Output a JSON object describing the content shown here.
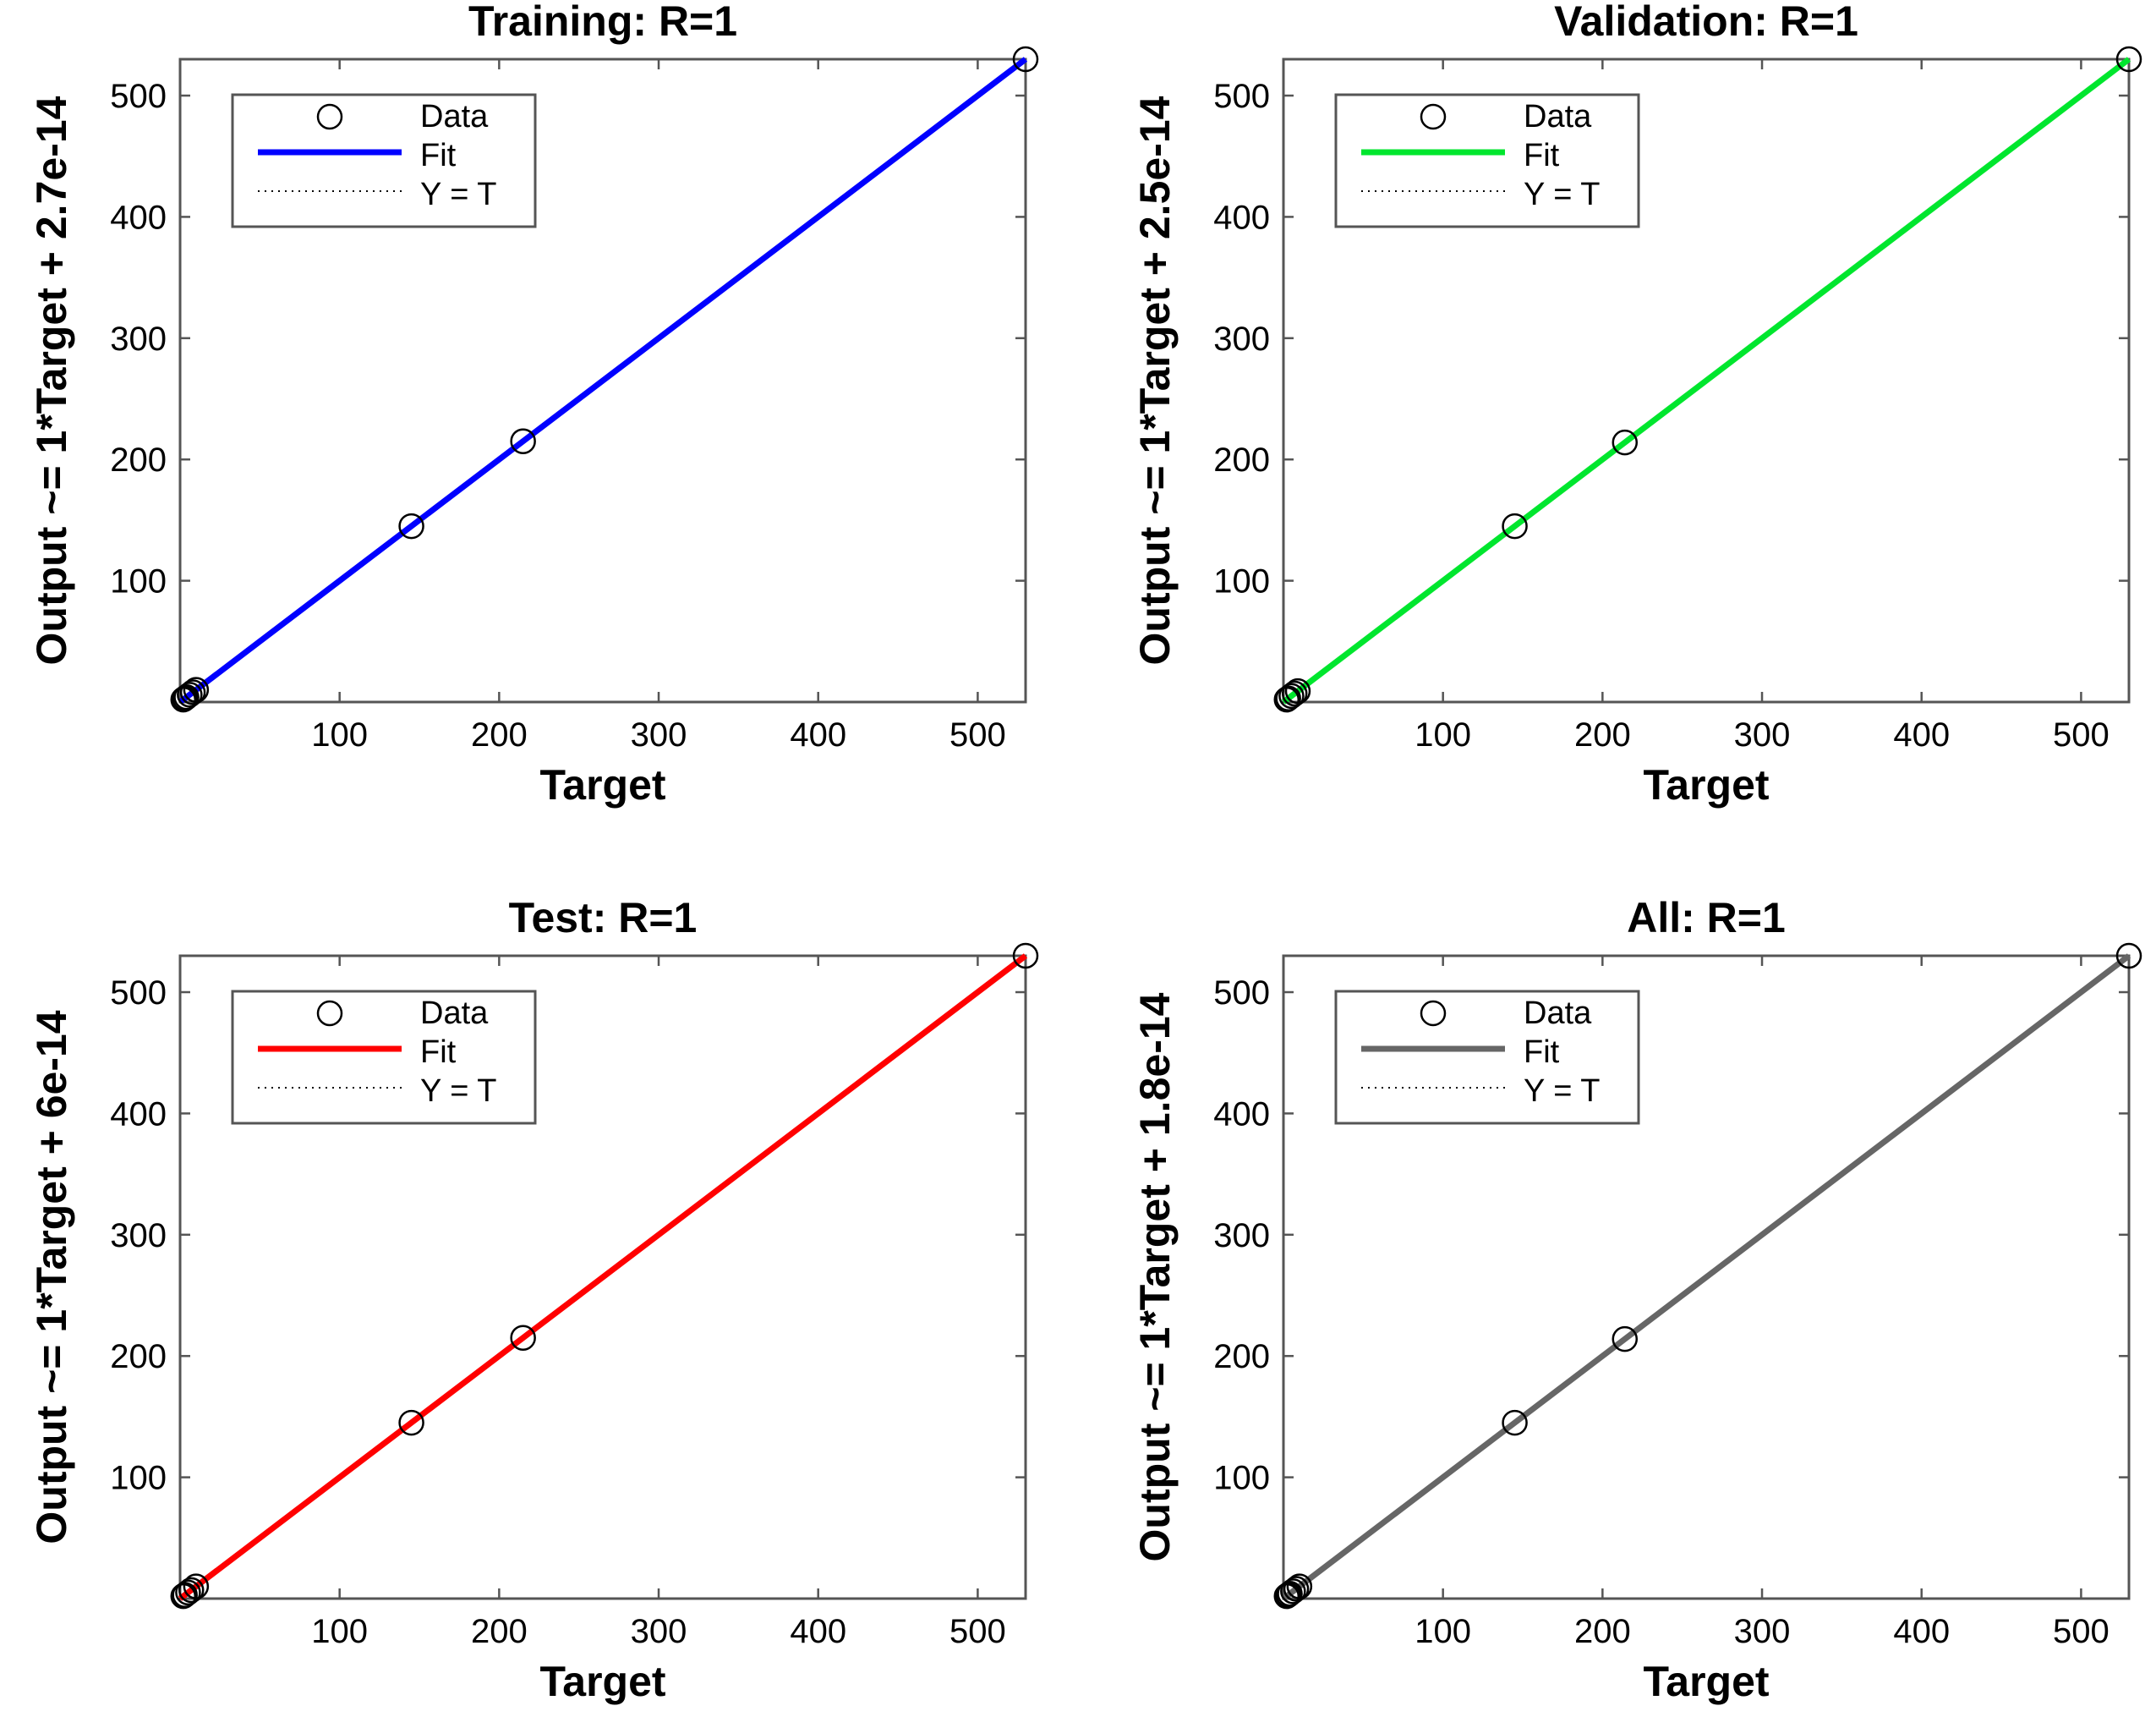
{
  "figure": {
    "background": "#ffffff",
    "grid": false
  },
  "chart_data": [
    {
      "type": "scatter",
      "title": "Training: R=1",
      "xlabel": "Target",
      "ylabel": "Output ~= 1*Target + 2.7e-14",
      "xlim": [
        0,
        530
      ],
      "ylim": [
        0,
        530
      ],
      "xticks": [
        100,
        200,
        300,
        400,
        500
      ],
      "yticks": [
        100,
        200,
        300,
        400,
        500
      ],
      "fit_color": "#0000ff",
      "legend": {
        "placement": "top-left",
        "entries": [
          "Data",
          "Fit",
          "Y = T"
        ]
      },
      "points": [
        {
          "x": 2,
          "y": 2
        },
        {
          "x": 3,
          "y": 3
        },
        {
          "x": 4,
          "y": 4
        },
        {
          "x": 6,
          "y": 6
        },
        {
          "x": 8,
          "y": 8
        },
        {
          "x": 10,
          "y": 10
        },
        {
          "x": 145,
          "y": 145
        },
        {
          "x": 215,
          "y": 215
        },
        {
          "x": 530,
          "y": 530
        }
      ],
      "fit": {
        "slope": 1,
        "intercept": 2.7e-14
      }
    },
    {
      "type": "scatter",
      "title": "Validation: R=1",
      "xlabel": "Target",
      "ylabel": "Output ~= 1*Target + 2.5e-14",
      "xlim": [
        0,
        530
      ],
      "ylim": [
        0,
        530
      ],
      "xticks": [
        100,
        200,
        300,
        400,
        500
      ],
      "yticks": [
        100,
        200,
        300,
        400,
        500
      ],
      "fit_color": "#00e62e",
      "legend": {
        "placement": "top-left",
        "entries": [
          "Data",
          "Fit",
          "Y = T"
        ]
      },
      "points": [
        {
          "x": 2,
          "y": 2
        },
        {
          "x": 3,
          "y": 3
        },
        {
          "x": 5,
          "y": 5
        },
        {
          "x": 7,
          "y": 7
        },
        {
          "x": 9,
          "y": 9
        },
        {
          "x": 145,
          "y": 145
        },
        {
          "x": 214,
          "y": 214
        },
        {
          "x": 530,
          "y": 530
        }
      ],
      "fit": {
        "slope": 1,
        "intercept": 2.5e-14
      }
    },
    {
      "type": "scatter",
      "title": "Test: R=1",
      "xlabel": "Target",
      "ylabel": "Output ~= 1*Target + 6e-14",
      "xlim": [
        0,
        530
      ],
      "ylim": [
        0,
        530
      ],
      "xticks": [
        100,
        200,
        300,
        400,
        500
      ],
      "yticks": [
        100,
        200,
        300,
        400,
        500
      ],
      "fit_color": "#ff0000",
      "legend": {
        "placement": "top-left",
        "entries": [
          "Data",
          "Fit",
          "Y = T"
        ]
      },
      "points": [
        {
          "x": 2,
          "y": 2
        },
        {
          "x": 3,
          "y": 3
        },
        {
          "x": 5,
          "y": 5
        },
        {
          "x": 7,
          "y": 7
        },
        {
          "x": 10,
          "y": 10
        },
        {
          "x": 145,
          "y": 145
        },
        {
          "x": 215,
          "y": 215
        },
        {
          "x": 530,
          "y": 530
        }
      ],
      "fit": {
        "slope": 1,
        "intercept": 6e-14
      }
    },
    {
      "type": "scatter",
      "title": "All: R=1",
      "xlabel": "Target",
      "ylabel": "Output ~= 1*Target + 1.8e-14",
      "xlim": [
        0,
        530
      ],
      "ylim": [
        0,
        530
      ],
      "xticks": [
        100,
        200,
        300,
        400,
        500
      ],
      "yticks": [
        100,
        200,
        300,
        400,
        500
      ],
      "fit_color": "#666666",
      "legend": {
        "placement": "top-left",
        "entries": [
          "Data",
          "Fit",
          "Y = T"
        ]
      },
      "points": [
        {
          "x": 2,
          "y": 2
        },
        {
          "x": 3,
          "y": 3
        },
        {
          "x": 4,
          "y": 4
        },
        {
          "x": 6,
          "y": 6
        },
        {
          "x": 8,
          "y": 8
        },
        {
          "x": 10,
          "y": 10
        },
        {
          "x": 145,
          "y": 145
        },
        {
          "x": 214,
          "y": 214
        },
        {
          "x": 530,
          "y": 530
        }
      ],
      "fit": {
        "slope": 1,
        "intercept": 1.8e-14
      }
    }
  ]
}
